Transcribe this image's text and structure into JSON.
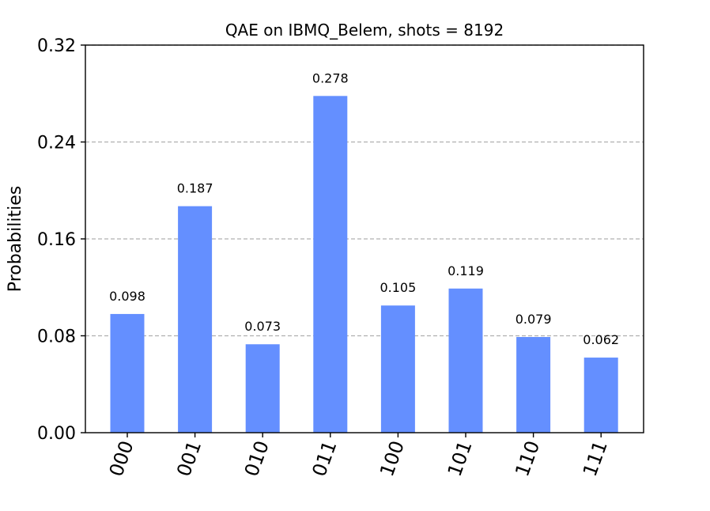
{
  "chart_data": {
    "type": "bar",
    "title": "QAE on IBMQ_Belem, shots = 8192",
    "xlabel": "",
    "ylabel": "Probabilities",
    "categories": [
      "000",
      "001",
      "010",
      "011",
      "100",
      "101",
      "110",
      "111"
    ],
    "values": [
      0.098,
      0.187,
      0.073,
      0.278,
      0.105,
      0.119,
      0.079,
      0.062
    ],
    "value_labels": [
      "0.098",
      "0.187",
      "0.073",
      "0.278",
      "0.105",
      "0.119",
      "0.079",
      "0.062"
    ],
    "ylim": [
      0,
      0.32
    ],
    "yticks": [
      0,
      0.08,
      0.16,
      0.24,
      0.32
    ],
    "ytick_labels": [
      "0.00",
      "0.08",
      "0.16",
      "0.24",
      "0.32"
    ],
    "grid": true,
    "legend": false,
    "bar_color": "#648fff"
  }
}
